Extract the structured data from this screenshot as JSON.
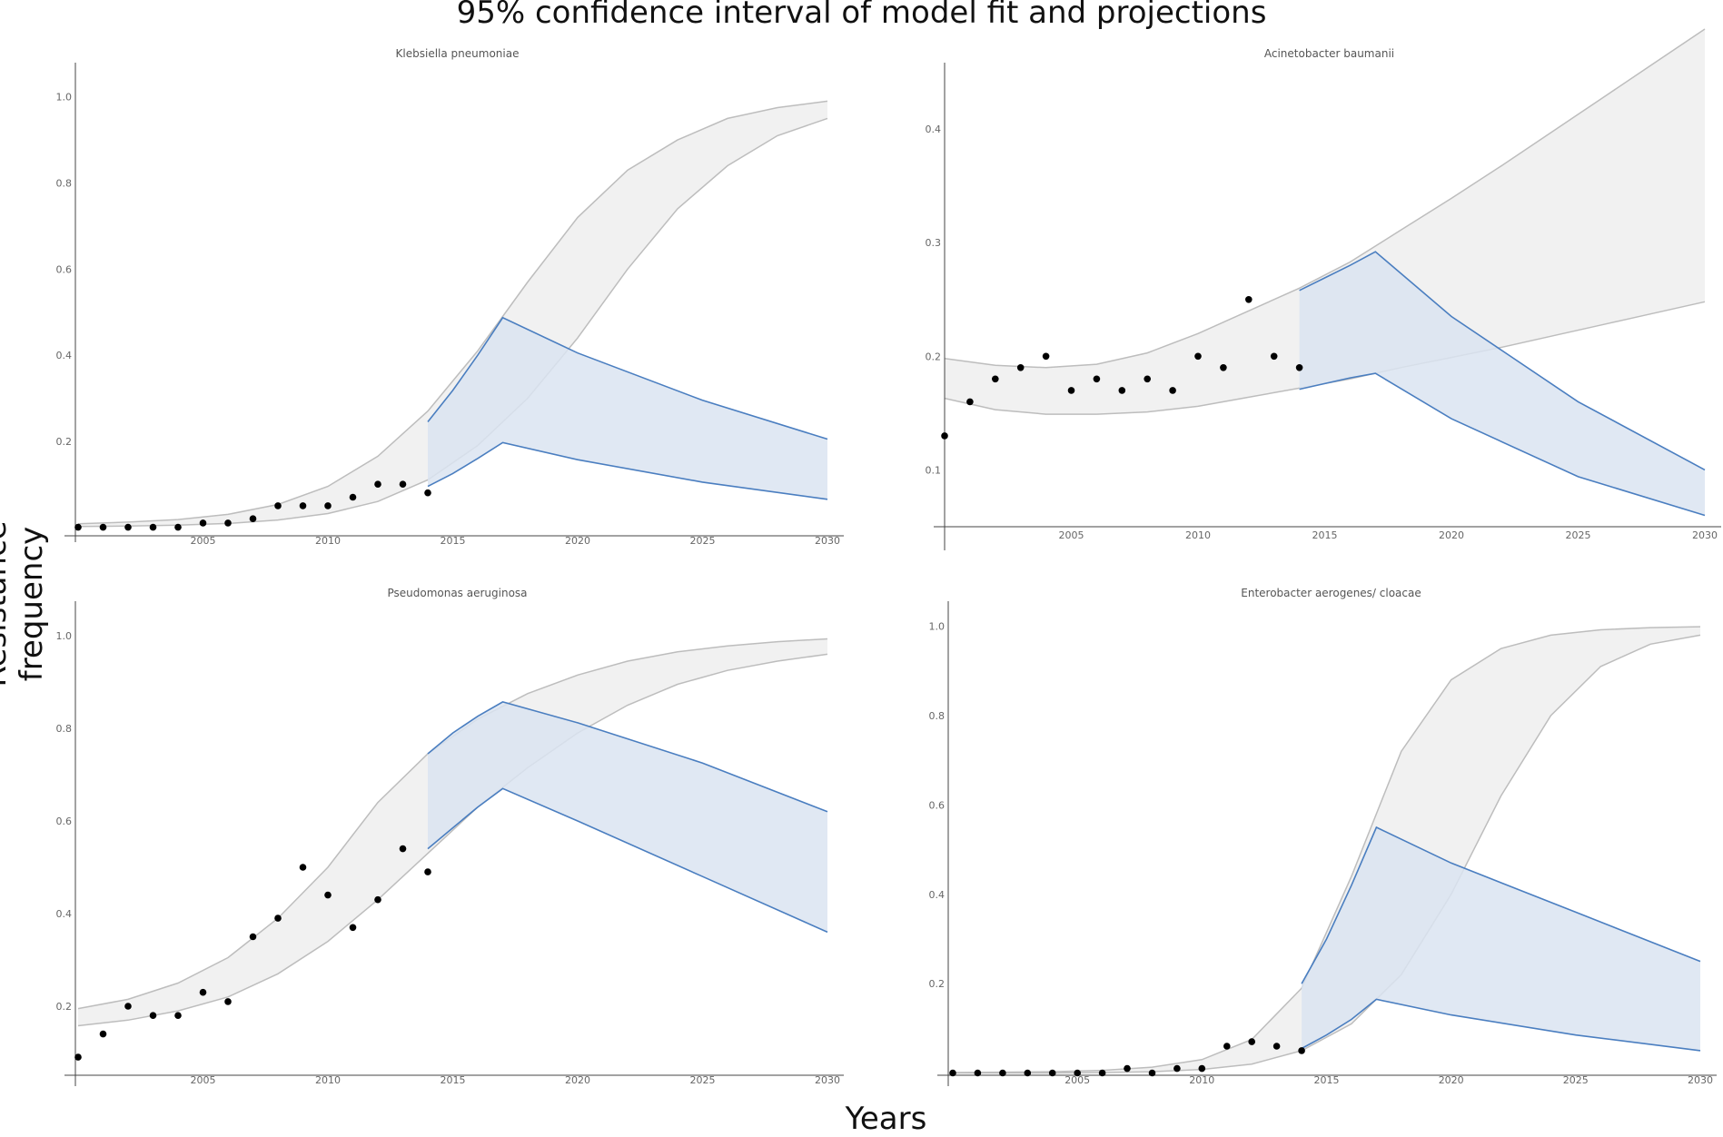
{
  "title": "95% confidence interval of model fit and projections",
  "xlabel": "Years",
  "ylabel": "Resistance frequency",
  "colors": {
    "fit_band": "#f1f1f1",
    "fit_line": "#bdbdbd",
    "proj_band": "#dbe4f1",
    "proj_line": "#4a7ec0",
    "points": "#000000",
    "axis": "#444444"
  },
  "chart_data": [
    {
      "type": "area",
      "title": "Klebsiella  pneumoniae",
      "xlim": [
        2000,
        2030
      ],
      "ylim": [
        -0.005,
        1.05
      ],
      "xticks": [
        2005,
        2010,
        2015,
        2020,
        2025,
        2030
      ],
      "yticks": [
        0.2,
        0.4,
        0.6,
        0.8,
        1.0
      ],
      "fit_band": {
        "x": [
          2000,
          2002,
          2004,
          2006,
          2008,
          2010,
          2012,
          2014,
          2016,
          2018,
          2020,
          2022,
          2024,
          2026,
          2028,
          2030
        ],
        "lower": [
          0.002,
          0.003,
          0.005,
          0.009,
          0.017,
          0.032,
          0.06,
          0.11,
          0.19,
          0.3,
          0.44,
          0.6,
          0.74,
          0.84,
          0.91,
          0.95
        ],
        "upper": [
          0.008,
          0.012,
          0.018,
          0.03,
          0.053,
          0.095,
          0.165,
          0.27,
          0.41,
          0.57,
          0.72,
          0.83,
          0.9,
          0.95,
          0.975,
          0.99
        ]
      },
      "proj_band": {
        "x": [
          2014,
          2015,
          2016,
          2017,
          2020,
          2025,
          2030
        ],
        "upper": [
          0.245,
          0.318,
          0.4,
          0.487,
          0.405,
          0.295,
          0.205
        ],
        "lower": [
          0.095,
          0.125,
          0.16,
          0.197,
          0.157,
          0.105,
          0.065
        ]
      },
      "points": {
        "x": [
          2000,
          2001,
          2002,
          2003,
          2004,
          2005,
          2006,
          2007,
          2008,
          2009,
          2010,
          2011,
          2012,
          2013,
          2014
        ],
        "y": [
          0.0,
          0.0,
          0.0,
          0.0,
          0.0,
          0.01,
          0.01,
          0.02,
          0.05,
          0.05,
          0.05,
          0.07,
          0.1,
          0.1,
          0.08
        ]
      }
    },
    {
      "type": "area",
      "title": "Acinetobacter  baumanii",
      "xlim": [
        2000,
        2030
      ],
      "ylim": [
        0.05,
        0.48
      ],
      "xticks": [
        2005,
        2010,
        2015,
        2020,
        2025,
        2030
      ],
      "yticks": [
        0.1,
        0.2,
        0.3,
        0.4
      ],
      "fit_band": {
        "x": [
          2000,
          2002,
          2004,
          2006,
          2008,
          2010,
          2012,
          2014,
          2016,
          2018,
          2020,
          2022,
          2024,
          2026,
          2028,
          2030
        ],
        "lower": [
          0.163,
          0.153,
          0.149,
          0.149,
          0.151,
          0.156,
          0.164,
          0.172,
          0.18,
          0.19,
          0.199,
          0.208,
          0.218,
          0.228,
          0.238,
          0.248
        ],
        "upper": [
          0.198,
          0.192,
          0.19,
          0.193,
          0.203,
          0.22,
          0.24,
          0.26,
          0.283,
          0.311,
          0.339,
          0.368,
          0.398,
          0.428,
          0.458,
          0.488
        ]
      },
      "proj_band": {
        "x": [
          2014,
          2015,
          2016,
          2017,
          2020,
          2025,
          2030
        ],
        "upper": [
          0.258,
          0.269,
          0.28,
          0.292,
          0.235,
          0.16,
          0.1
        ],
        "lower": [
          0.171,
          0.176,
          0.181,
          0.185,
          0.145,
          0.094,
          0.06
        ]
      },
      "points": {
        "x": [
          2000,
          2001,
          2002,
          2003,
          2004,
          2005,
          2006,
          2007,
          2008,
          2009,
          2010,
          2011,
          2012,
          2013,
          2014
        ],
        "y": [
          0.13,
          0.16,
          0.18,
          0.19,
          0.2,
          0.17,
          0.18,
          0.17,
          0.18,
          0.17,
          0.2,
          0.19,
          0.25,
          0.2,
          0.19
        ]
      }
    },
    {
      "type": "area",
      "title": "Pseudomonas  aeruginosa",
      "xlim": [
        2000,
        2030
      ],
      "ylim": [
        0.055,
        1.045
      ],
      "xticks": [
        2005,
        2010,
        2015,
        2020,
        2025,
        2030
      ],
      "yticks": [
        0.2,
        0.4,
        0.6,
        0.8,
        1.0
      ],
      "fit_band": {
        "x": [
          2000,
          2002,
          2004,
          2006,
          2008,
          2010,
          2012,
          2014,
          2016,
          2018,
          2020,
          2022,
          2024,
          2026,
          2028,
          2030
        ],
        "lower": [
          0.158,
          0.17,
          0.19,
          0.22,
          0.27,
          0.34,
          0.43,
          0.53,
          0.63,
          0.715,
          0.79,
          0.85,
          0.895,
          0.925,
          0.945,
          0.96
        ],
        "upper": [
          0.195,
          0.215,
          0.25,
          0.305,
          0.39,
          0.5,
          0.64,
          0.745,
          0.82,
          0.875,
          0.915,
          0.945,
          0.965,
          0.978,
          0.987,
          0.993
        ]
      },
      "proj_band": {
        "x": [
          2014,
          2015,
          2016,
          2017,
          2020,
          2025,
          2030
        ],
        "upper": [
          0.745,
          0.79,
          0.826,
          0.857,
          0.812,
          0.725,
          0.62
        ],
        "lower": [
          0.54,
          0.585,
          0.63,
          0.67,
          0.6,
          0.48,
          0.36
        ]
      },
      "points": {
        "x": [
          2000,
          2001,
          2002,
          2003,
          2004,
          2005,
          2006,
          2007,
          2008,
          2009,
          2010,
          2011,
          2012,
          2013,
          2014
        ],
        "y": [
          0.09,
          0.14,
          0.2,
          0.18,
          0.18,
          0.23,
          0.21,
          0.35,
          0.39,
          0.5,
          0.44,
          0.37,
          0.43,
          0.54,
          0.49
        ]
      }
    },
    {
      "type": "area",
      "title": "Enterobacter  aerogenes/ cloacae",
      "xlim": [
        2000,
        2030
      ],
      "ylim": [
        -0.005,
        1.05
      ],
      "xticks": [
        2005,
        2010,
        2015,
        2020,
        2025,
        2030
      ],
      "yticks": [
        0.2,
        0.4,
        0.6,
        0.8,
        1.0
      ],
      "fit_band": {
        "x": [
          2000,
          2002,
          2004,
          2006,
          2008,
          2010,
          2012,
          2014,
          2016,
          2018,
          2020,
          2022,
          2024,
          2026,
          2028,
          2030
        ],
        "lower": [
          0.0,
          0.0,
          0.0,
          0.001,
          0.003,
          0.008,
          0.02,
          0.05,
          0.11,
          0.22,
          0.4,
          0.62,
          0.8,
          0.91,
          0.96,
          0.98
        ],
        "upper": [
          0.001,
          0.002,
          0.003,
          0.006,
          0.013,
          0.03,
          0.075,
          0.19,
          0.44,
          0.72,
          0.88,
          0.95,
          0.98,
          0.992,
          0.997,
          0.999
        ]
      },
      "proj_band": {
        "x": [
          2014,
          2015,
          2016,
          2017,
          2020,
          2025,
          2030
        ],
        "upper": [
          0.2,
          0.3,
          0.42,
          0.55,
          0.47,
          0.36,
          0.25
        ],
        "lower": [
          0.055,
          0.085,
          0.12,
          0.165,
          0.13,
          0.085,
          0.05
        ]
      },
      "points": {
        "x": [
          2000,
          2001,
          2002,
          2003,
          2004,
          2005,
          2006,
          2007,
          2008,
          2009,
          2010,
          2011,
          2012,
          2013,
          2014
        ],
        "y": [
          0.0,
          0.0,
          0.0,
          0.0,
          0.0,
          0.0,
          0.0,
          0.01,
          0.0,
          0.01,
          0.01,
          0.06,
          0.07,
          0.06,
          0.05
        ]
      }
    }
  ]
}
